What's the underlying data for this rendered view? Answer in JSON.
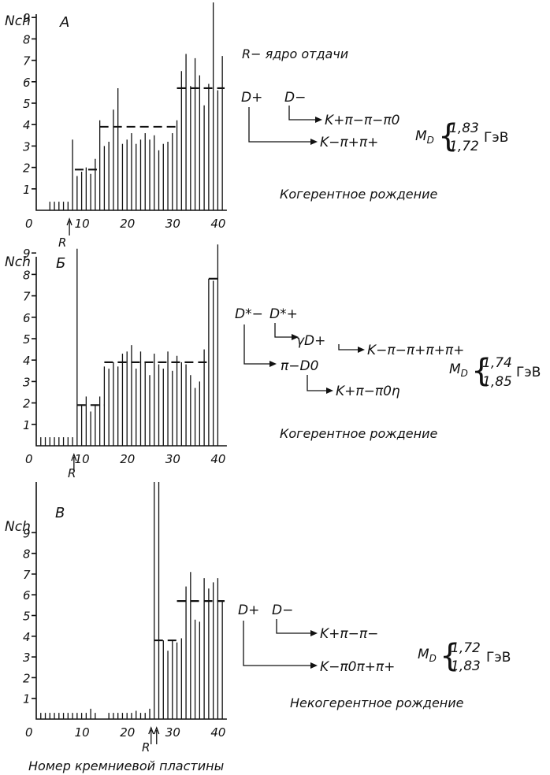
{
  "axis_label_y": "Nch",
  "axis_label_x": "Номер кремниевой пластины",
  "recoil_label": "R",
  "legend_recoil": "R− ядро отдачи",
  "unit": "ГэВ",
  "mass_symbol": "M",
  "mass_sub": "D",
  "panels": [
    {
      "id": "A",
      "title": "A",
      "pair": [
        "D+",
        "D−"
      ],
      "decays": [
        "K+π−π−π0",
        "K−π+π+"
      ],
      "masses": [
        "1,83",
        "1,72"
      ],
      "note": "Когерентное рождение"
    },
    {
      "id": "B",
      "title": "Б",
      "pair": [
        "D*−",
        "D*+"
      ],
      "decays": [
        "γD+",
        "K−π−π+π+π+",
        "π−D0",
        "K+π−π0η"
      ],
      "masses": [
        "1,74",
        "1,85"
      ],
      "note": "Когерентное рождение"
    },
    {
      "id": "C",
      "title": "В",
      "pair": [
        "D+",
        "D−"
      ],
      "decays": [
        "K+π−π−",
        "K−π0π+π+"
      ],
      "masses": [
        "1,72",
        "1,83"
      ],
      "note": "Некогерентное рождение"
    }
  ],
  "chart_data": [
    {
      "type": "bar",
      "title": "A",
      "ylabel": "Nch",
      "xticks": [
        0,
        10,
        20,
        30,
        40
      ],
      "yticks": [
        1,
        2,
        3,
        4,
        5,
        6,
        7,
        8,
        9
      ],
      "xlim": [
        0,
        42
      ],
      "ylim": [
        0,
        10
      ],
      "recoil_plane": 8,
      "bars": [
        [
          3,
          0.4
        ],
        [
          4,
          0.4
        ],
        [
          5,
          0.4
        ],
        [
          6,
          0.4
        ],
        [
          7,
          0.4
        ],
        [
          8,
          3.3
        ],
        [
          9,
          1.6
        ],
        [
          10,
          1.8
        ],
        [
          11,
          2.0
        ],
        [
          12,
          1.7
        ],
        [
          13,
          2.4
        ],
        [
          14,
          4.2
        ],
        [
          15,
          3.0
        ],
        [
          16,
          3.2
        ],
        [
          17,
          4.7
        ],
        [
          18,
          5.7
        ],
        [
          19,
          3.1
        ],
        [
          20,
          3.3
        ],
        [
          21,
          3.6
        ],
        [
          22,
          3.1
        ],
        [
          23,
          3.3
        ],
        [
          24,
          3.6
        ],
        [
          25,
          3.3
        ],
        [
          26,
          3.5
        ],
        [
          27,
          2.8
        ],
        [
          28,
          3.1
        ],
        [
          29,
          3.2
        ],
        [
          30,
          3.6
        ],
        [
          31,
          4.2
        ],
        [
          32,
          6.5
        ],
        [
          33,
          7.3
        ],
        [
          34,
          5.8
        ],
        [
          35,
          7.1
        ],
        [
          36,
          6.3
        ],
        [
          37,
          4.9
        ],
        [
          38,
          5.9
        ],
        [
          39,
          9.7
        ],
        [
          40,
          5.6
        ],
        [
          41,
          7.2
        ]
      ],
      "levels": [
        {
          "from": 8.5,
          "to": 14,
          "value": 1.9
        },
        {
          "from": 14,
          "to": 31,
          "value": 3.9
        },
        {
          "from": 31,
          "to": 41.5,
          "value": 5.7
        }
      ]
    },
    {
      "type": "bar",
      "title": "Б",
      "ylabel": "Nch",
      "xticks": [
        0,
        10,
        20,
        30,
        40
      ],
      "yticks": [
        1,
        2,
        3,
        4,
        5,
        6,
        7,
        8,
        9
      ],
      "xlim": [
        0,
        42
      ],
      "ylim": [
        0,
        10
      ],
      "recoil_plane": 9,
      "bars": [
        [
          1,
          0.4
        ],
        [
          2,
          0.4
        ],
        [
          3,
          0.4
        ],
        [
          4,
          0.4
        ],
        [
          5,
          0.4
        ],
        [
          6,
          0.4
        ],
        [
          7,
          0.4
        ],
        [
          8,
          0.4
        ],
        [
          9,
          9.2
        ],
        [
          10,
          1.9
        ],
        [
          11,
          2.3
        ],
        [
          12,
          1.6
        ],
        [
          13,
          1.9
        ],
        [
          14,
          2.3
        ],
        [
          15,
          3.7
        ],
        [
          16,
          3.6
        ],
        [
          17,
          3.9
        ],
        [
          18,
          3.7
        ],
        [
          19,
          4.3
        ],
        [
          20,
          4.4
        ],
        [
          21,
          4.7
        ],
        [
          22,
          3.6
        ],
        [
          23,
          4.4
        ],
        [
          24,
          3.9
        ],
        [
          25,
          3.3
        ],
        [
          26,
          4.3
        ],
        [
          27,
          3.8
        ],
        [
          28,
          3.6
        ],
        [
          29,
          4.4
        ],
        [
          30,
          3.5
        ],
        [
          31,
          4.2
        ],
        [
          32,
          3.9
        ],
        [
          33,
          3.8
        ],
        [
          34,
          3.3
        ],
        [
          35,
          2.7
        ],
        [
          36,
          3.0
        ],
        [
          37,
          4.5
        ],
        [
          38,
          7.8
        ],
        [
          39,
          7.7
        ],
        [
          40,
          9.4
        ]
      ],
      "levels": [
        {
          "from": 9,
          "to": 15,
          "value": 1.9
        },
        {
          "from": 15,
          "to": 38,
          "value": 3.9
        },
        {
          "from": 38,
          "to": 40.5,
          "value": 7.8
        }
      ]
    },
    {
      "type": "bar",
      "title": "В",
      "ylabel": "Nch",
      "xticks": [
        0,
        10,
        20,
        30,
        40
      ],
      "yticks": [
        1,
        2,
        3,
        4,
        5,
        6,
        7,
        8,
        9
      ],
      "xlim": [
        0,
        42
      ],
      "ylim": [
        0,
        10
      ],
      "recoil_plane": 26,
      "bars": [
        [
          1,
          0.3
        ],
        [
          2,
          0.3
        ],
        [
          3,
          0.3
        ],
        [
          4,
          0.3
        ],
        [
          5,
          0.3
        ],
        [
          6,
          0.3
        ],
        [
          7,
          0.3
        ],
        [
          8,
          0.3
        ],
        [
          9,
          0.3
        ],
        [
          10,
          0.3
        ],
        [
          11,
          0.3
        ],
        [
          12,
          0.5
        ],
        [
          13,
          0.3
        ],
        [
          16,
          0.3
        ],
        [
          17,
          0.3
        ],
        [
          18,
          0.3
        ],
        [
          19,
          0.3
        ],
        [
          20,
          0.3
        ],
        [
          21,
          0.3
        ],
        [
          22,
          0.4
        ],
        [
          23,
          0.3
        ],
        [
          24,
          0.3
        ],
        [
          25,
          0.5
        ],
        [
          26,
          11.5
        ],
        [
          27,
          12.0
        ],
        [
          28,
          3.8
        ],
        [
          29,
          3.3
        ],
        [
          30,
          3.8
        ],
        [
          31,
          3.7
        ],
        [
          32,
          3.9
        ],
        [
          33,
          6.4
        ],
        [
          34,
          7.1
        ],
        [
          35,
          4.8
        ],
        [
          36,
          4.7
        ],
        [
          37,
          6.8
        ],
        [
          38,
          6.3
        ],
        [
          39,
          6.6
        ],
        [
          40,
          6.8
        ],
        [
          41,
          5.7
        ]
      ],
      "levels": [
        {
          "from": 26,
          "to": 31,
          "value": 3.8
        },
        {
          "from": 31,
          "to": 41.5,
          "value": 5.7
        }
      ]
    }
  ]
}
